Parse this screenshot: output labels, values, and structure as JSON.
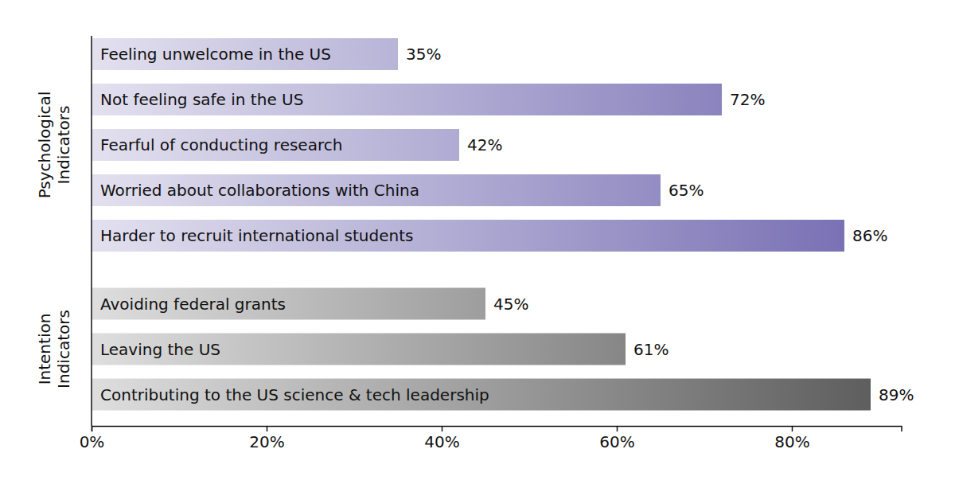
{
  "chart_data": {
    "type": "bar",
    "orientation": "horizontal",
    "data_labels": true,
    "grid": false,
    "categories": [
      "Feeling unwelcome in the US",
      "Not feeling safe in the US",
      "Fearful of conducting research",
      "Worried about collaborations with China",
      "Harder to recruit international students",
      "Avoiding federal grants",
      "Leaving the US",
      "Contributing to the US science & tech leadership"
    ],
    "series": [
      {
        "name": "Psychological Indicators",
        "color": "#7169b0",
        "values": [
          35,
          72,
          42,
          65,
          86,
          null,
          null,
          null
        ],
        "value_labels": [
          "35%",
          "72%",
          "42%",
          "65%",
          "86%",
          null,
          null,
          null
        ]
      },
      {
        "name": "Intention Indicators",
        "color": "#595959",
        "values": [
          null,
          null,
          null,
          null,
          null,
          45,
          61,
          89
        ],
        "value_labels": [
          null,
          null,
          null,
          null,
          null,
          "45%",
          "61%",
          "89%"
        ]
      }
    ],
    "xlim": [
      0,
      92.5
    ],
    "xticks": [
      {
        "value": 0,
        "label": "0%"
      },
      {
        "value": 20,
        "label": "20%"
      },
      {
        "value": 40,
        "label": "40%"
      },
      {
        "value": 60,
        "label": "60%"
      },
      {
        "value": 80,
        "label": "80%"
      }
    ]
  }
}
